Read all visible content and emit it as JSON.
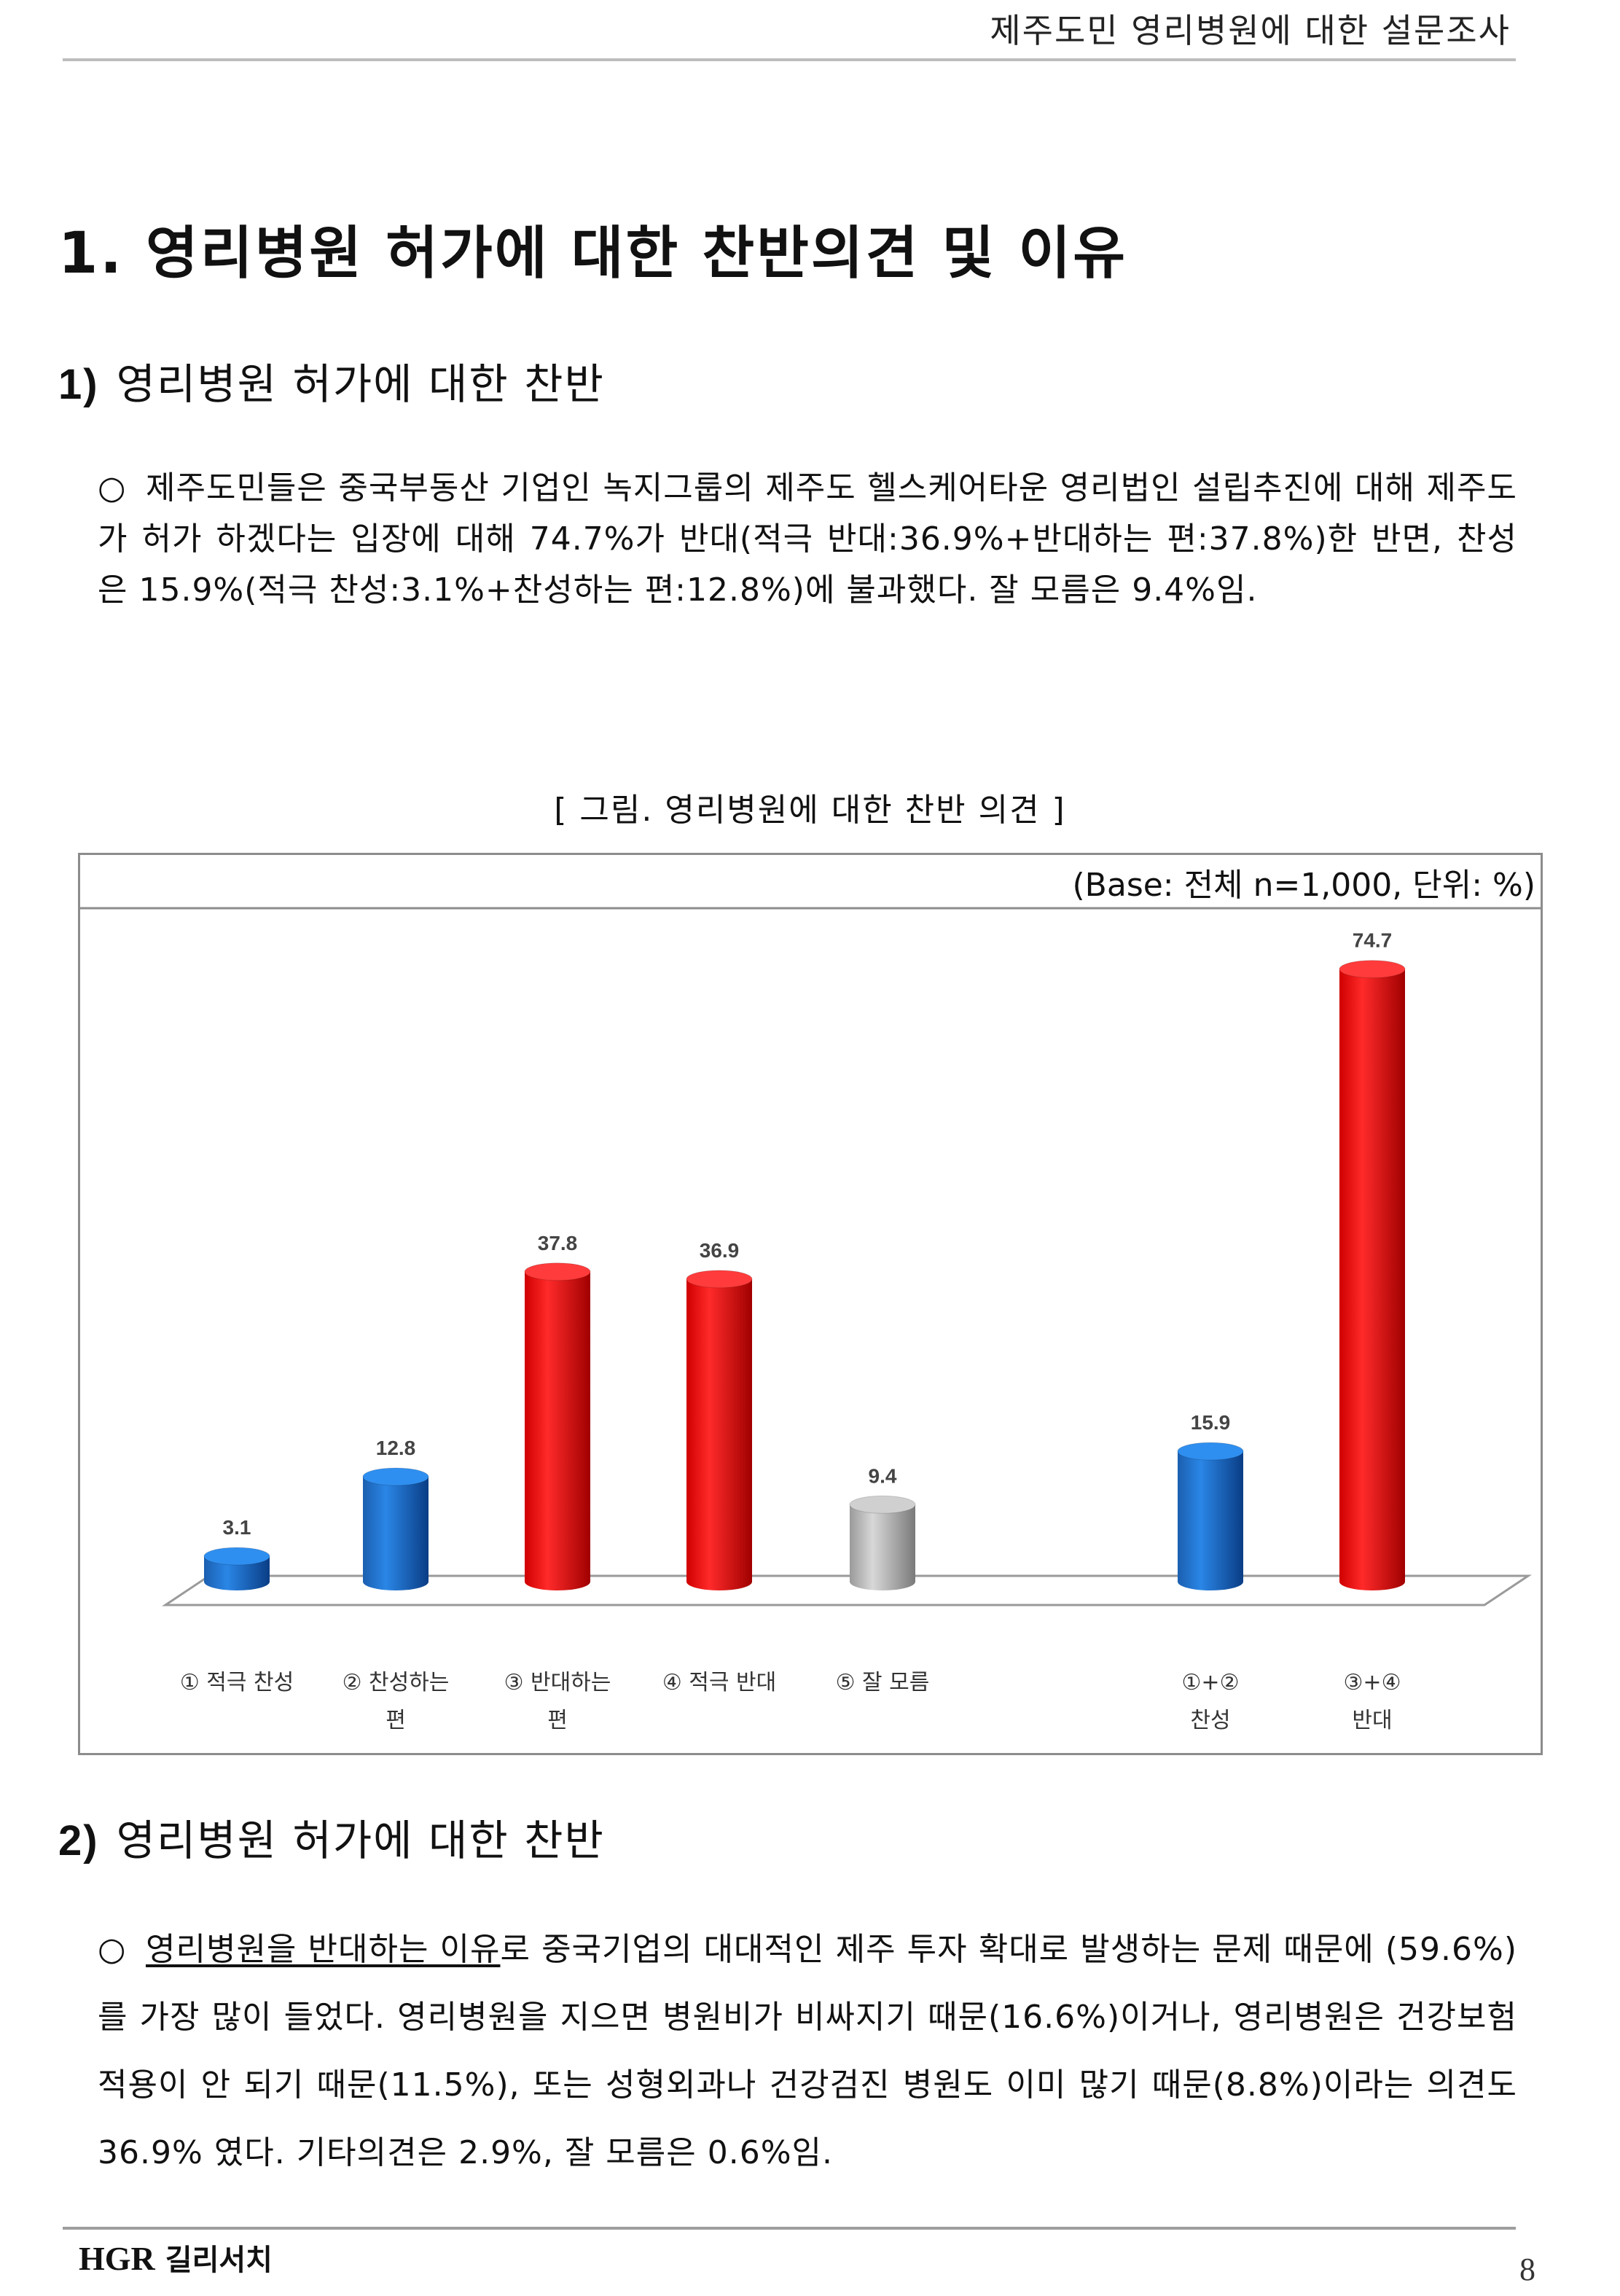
{
  "header": {
    "title": "제주도민 영리병원에 대한 설문조사"
  },
  "section1": {
    "title": "1. 영리병원 허가에 대한 찬반의견 및 이유"
  },
  "subsection1": {
    "number": "1)",
    "title": "영리병원 허가에 대한 찬반",
    "bullet_symbol": "○",
    "paragraph": "제주도민들은 중국부동산 기업인 녹지그룹의 제주도 헬스케어타운 영리법인 설립추진에 대해 제주도가 허가 하겠다는 입장에 대해 74.7%가 반대(적극 반대:36.9%+반대하는 편:37.8%)한 반면, 찬성은 15.9%(적극 찬성:3.1%+찬성하는 편:12.8%)에 불과했다. 잘 모름은 9.4%임."
  },
  "figure": {
    "caption": "[ 그림. 영리병원에 대한 찬반 의견 ]",
    "base_note": "(Base: 전체 n=1,000, 단위: %)"
  },
  "chart_data": {
    "type": "bar",
    "categories": [
      [
        "① 적극 찬성"
      ],
      [
        "② 찬성하는",
        "편"
      ],
      [
        "③ 반대하는",
        "편"
      ],
      [
        "④ 적극 반대"
      ],
      [
        "⑤ 잘 모름"
      ],
      [
        ""
      ],
      [
        "①+②",
        "찬성"
      ],
      [
        "③+④",
        "반대"
      ]
    ],
    "values": [
      3.1,
      12.8,
      37.8,
      36.9,
      9.4,
      null,
      15.9,
      74.7
    ],
    "data_labels": [
      "3.1",
      "12.8",
      "37.8",
      "36.9",
      "9.4",
      "",
      "15.9",
      "74.7"
    ],
    "colors": [
      "#0055b0",
      "#0055b0",
      "#e80000",
      "#e80000",
      "#a6a6a6",
      "",
      "#0055b0",
      "#e80000"
    ],
    "ylim": [
      0,
      80
    ],
    "grid": false,
    "legend": "none"
  },
  "subsection2": {
    "number": "2)",
    "title": "영리병원 허가에 대한 찬반",
    "bullet_symbol": "○",
    "lead_underlined": "영리병원을 반대하는 이유",
    "paragraph_rest": "로 중국기업의 대대적인 제주 투자 확대로 발생하는 문제 때문에 (59.6%)를 가장 많이 들었다. 영리병원을 지으면 병원비가 비싸지기 때문(16.6%)이거나, 영리병원은 건강보험 적용이 안 되기 때문(11.5%), 또는 성형외과나 건강검진 병원도 이미 많기 때문(8.8%)이라는 의견도 36.9% 였다. 기타의견은 2.9%, 잘 모름은 0.6%임."
  },
  "footer": {
    "logo_text": "HGR",
    "logo_korean": "길리서치",
    "page_number": "8"
  }
}
